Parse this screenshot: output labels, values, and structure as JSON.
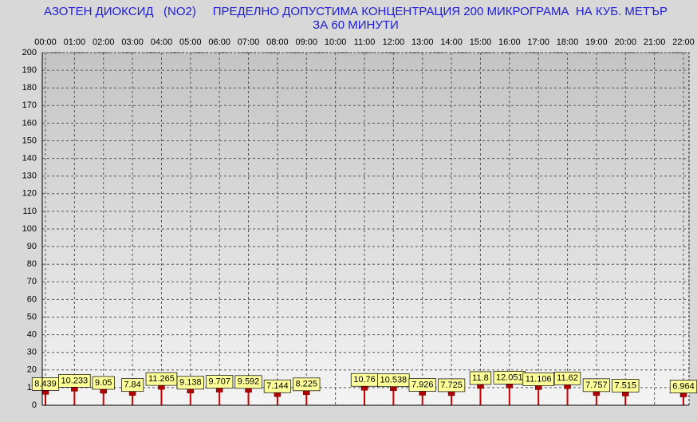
{
  "chart_data": {
    "type": "bar",
    "title": "АЗОТЕН ДИОКСИД   (NO2)     ПРЕДЕЛНО ДОПУСТИМА КОНЦЕНТРАЦИЯ 200 МИКРОГРАМА  НА КУБ. МЕТЪР",
    "subtitle": "ЗА 60 МИНУТИ",
    "categories": [
      "00:00",
      "01:00",
      "02:00",
      "03:00",
      "04:00",
      "05:00",
      "06:00",
      "07:00",
      "08:00",
      "09:00",
      "10:00",
      "11:00",
      "12:00",
      "13:00",
      "14:00",
      "15:00",
      "16:00",
      "17:00",
      "18:00",
      "19:00",
      "20:00",
      "21:00",
      "22:00"
    ],
    "values": [
      8.439,
      10.233,
      9.05,
      7.84,
      11.265,
      9.138,
      9.707,
      9.592,
      7.144,
      8.225,
      null,
      10.76,
      10.538,
      7.926,
      7.725,
      11.8,
      12.051,
      11.106,
      11.62,
      7.757,
      7.515,
      null,
      6.964
    ],
    "color": "#cc0000",
    "ylim": [
      0,
      200
    ],
    "yticks": [
      0,
      10,
      20,
      30,
      40,
      50,
      60,
      70,
      80,
      90,
      100,
      110,
      120,
      130,
      140,
      150,
      160,
      170,
      180,
      190,
      200
    ],
    "grid": true
  }
}
